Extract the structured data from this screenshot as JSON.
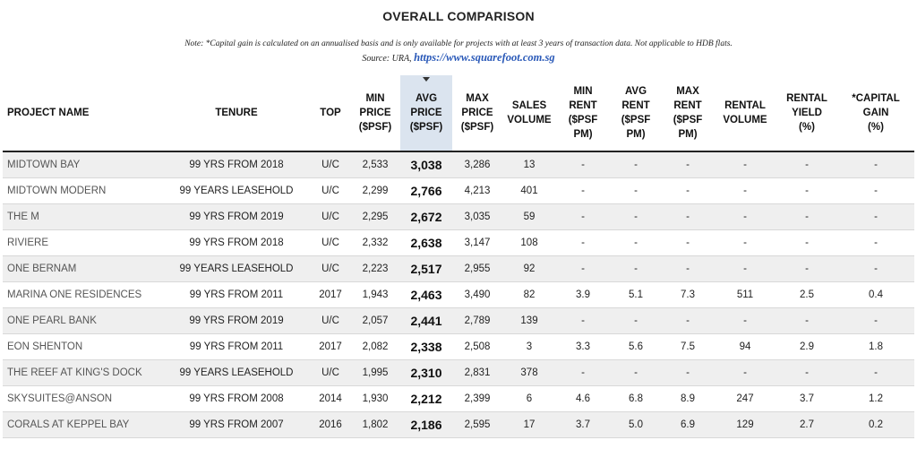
{
  "title": "OVERALL COMPARISON",
  "note": "Note: *Capital gain is calculated on an annualised basis and is only available for projects with at least 3 years of transaction data. Not applicable to HDB flats.",
  "source": {
    "prefix": "Source: URA,",
    "link": "https://www.squarefoot.com.sg"
  },
  "table": {
    "headers": {
      "project": "PROJECT NAME",
      "tenure": "TENURE",
      "top": "TOP",
      "min_price": [
        "MIN",
        "PRICE",
        "($PSF)"
      ],
      "avg_price": [
        "AVG",
        "PRICE",
        "($PSF)"
      ],
      "max_price": [
        "MAX",
        "PRICE",
        "($PSF)"
      ],
      "sales_volume": [
        "SALES",
        "VOLUME"
      ],
      "min_rent": [
        "MIN",
        "RENT",
        "($PSF",
        "PM)"
      ],
      "avg_rent": [
        "AVG",
        "RENT",
        "($PSF",
        "PM)"
      ],
      "max_rent": [
        "MAX",
        "RENT",
        "($PSF",
        "PM)"
      ],
      "rental_volume": [
        "RENTAL",
        "VOLUME"
      ],
      "rental_yield": [
        "RENTAL",
        "YIELD",
        "(%)"
      ],
      "capital_gain": [
        "*CAPITAL",
        "GAIN",
        "(%)"
      ]
    },
    "sort_icon": "triangle-down-icon",
    "rows": [
      {
        "project": "MIDTOWN BAY",
        "tenure": "99 YRS FROM 2018",
        "top": "U/C",
        "min_price": "2,533",
        "avg_price": "3,038",
        "max_price": "3,286",
        "sales_volume": "13",
        "min_rent": "-",
        "avg_rent": "-",
        "max_rent": "-",
        "rental_volume": "-",
        "rental_yield": "-",
        "capital_gain": "-"
      },
      {
        "project": "MIDTOWN MODERN",
        "tenure": "99 YEARS LEASEHOLD",
        "top": "U/C",
        "min_price": "2,299",
        "avg_price": "2,766",
        "max_price": "4,213",
        "sales_volume": "401",
        "min_rent": "-",
        "avg_rent": "-",
        "max_rent": "-",
        "rental_volume": "-",
        "rental_yield": "-",
        "capital_gain": "-"
      },
      {
        "project": "THE M",
        "tenure": "99 YRS FROM 2019",
        "top": "U/C",
        "min_price": "2,295",
        "avg_price": "2,672",
        "max_price": "3,035",
        "sales_volume": "59",
        "min_rent": "-",
        "avg_rent": "-",
        "max_rent": "-",
        "rental_volume": "-",
        "rental_yield": "-",
        "capital_gain": "-"
      },
      {
        "project": "RIVIERE",
        "tenure": "99 YRS FROM 2018",
        "top": "U/C",
        "min_price": "2,332",
        "avg_price": "2,638",
        "max_price": "3,147",
        "sales_volume": "108",
        "min_rent": "-",
        "avg_rent": "-",
        "max_rent": "-",
        "rental_volume": "-",
        "rental_yield": "-",
        "capital_gain": "-"
      },
      {
        "project": "ONE BERNAM",
        "tenure": "99 YEARS LEASEHOLD",
        "top": "U/C",
        "min_price": "2,223",
        "avg_price": "2,517",
        "max_price": "2,955",
        "sales_volume": "92",
        "min_rent": "-",
        "avg_rent": "-",
        "max_rent": "-",
        "rental_volume": "-",
        "rental_yield": "-",
        "capital_gain": "-"
      },
      {
        "project": "MARINA ONE RESIDENCES",
        "tenure": "99 YRS FROM 2011",
        "top": "2017",
        "min_price": "1,943",
        "avg_price": "2,463",
        "max_price": "3,490",
        "sales_volume": "82",
        "min_rent": "3.9",
        "avg_rent": "5.1",
        "max_rent": "7.3",
        "rental_volume": "511",
        "rental_yield": "2.5",
        "capital_gain": "0.4"
      },
      {
        "project": "ONE PEARL BANK",
        "tenure": "99 YRS FROM 2019",
        "top": "U/C",
        "min_price": "2,057",
        "avg_price": "2,441",
        "max_price": "2,789",
        "sales_volume": "139",
        "min_rent": "-",
        "avg_rent": "-",
        "max_rent": "-",
        "rental_volume": "-",
        "rental_yield": "-",
        "capital_gain": "-"
      },
      {
        "project": "EON SHENTON",
        "tenure": "99 YRS FROM 2011",
        "top": "2017",
        "min_price": "2,082",
        "avg_price": "2,338",
        "max_price": "2,508",
        "sales_volume": "3",
        "min_rent": "3.3",
        "avg_rent": "5.6",
        "max_rent": "7.5",
        "rental_volume": "94",
        "rental_yield": "2.9",
        "capital_gain": "1.8"
      },
      {
        "project": "THE REEF AT KING'S DOCK",
        "tenure": "99 YEARS LEASEHOLD",
        "top": "U/C",
        "min_price": "1,995",
        "avg_price": "2,310",
        "max_price": "2,831",
        "sales_volume": "378",
        "min_rent": "-",
        "avg_rent": "-",
        "max_rent": "-",
        "rental_volume": "-",
        "rental_yield": "-",
        "capital_gain": "-"
      },
      {
        "project": "SKYSUITES@ANSON",
        "tenure": "99 YRS FROM 2008",
        "top": "2014",
        "min_price": "1,930",
        "avg_price": "2,212",
        "max_price": "2,399",
        "sales_volume": "6",
        "min_rent": "4.6",
        "avg_rent": "6.8",
        "max_rent": "8.9",
        "rental_volume": "247",
        "rental_yield": "3.7",
        "capital_gain": "1.2"
      },
      {
        "project": "CORALS AT KEPPEL BAY",
        "tenure": "99 YRS FROM 2007",
        "top": "2016",
        "min_price": "1,802",
        "avg_price": "2,186",
        "max_price": "2,595",
        "sales_volume": "17",
        "min_rent": "3.7",
        "avg_rent": "5.0",
        "max_rent": "6.9",
        "rental_volume": "129",
        "rental_yield": "2.7",
        "capital_gain": "0.2"
      }
    ]
  }
}
